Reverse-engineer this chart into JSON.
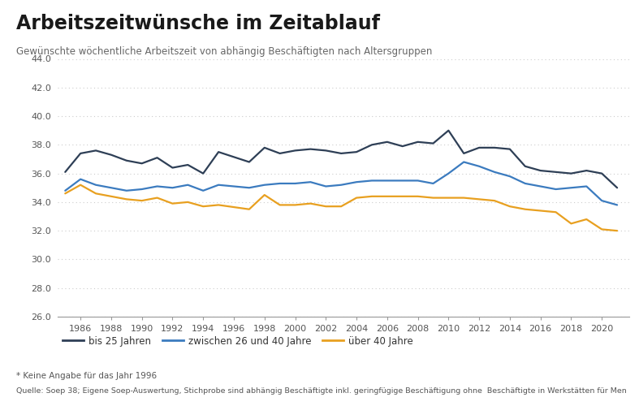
{
  "title": "Arbeitszeitwünsche im Zeitablauf",
  "subtitle": "Gewünschte wöchentliche Arbeitszeit von abhängig Beschäftigten nach Altersgruppen",
  "footnote": "* Keine Angabe für das Jahr 1996",
  "source": "Quelle: Soep 38; Eigene Soep-Auswertung, Stichprobe sind abhängig Beschäftigte inkl. geringfügige Beschäftigung ohne  Beschäftigte in Werkstätten für Men",
  "ylim": [
    26.0,
    44.0
  ],
  "yticks": [
    26.0,
    28.0,
    30.0,
    32.0,
    34.0,
    36.0,
    38.0,
    40.0,
    42.0,
    44.0
  ],
  "series": {
    "bis25": {
      "label": "bis 25 Jahren",
      "color": "#2e3f56",
      "linewidth": 1.6,
      "years": [
        1985,
        1986,
        1987,
        1988,
        1989,
        1990,
        1991,
        1992,
        1993,
        1994,
        1995,
        1997,
        1998,
        1999,
        2000,
        2001,
        2002,
        2003,
        2004,
        2005,
        2006,
        2007,
        2008,
        2009,
        2010,
        2011,
        2012,
        2013,
        2014,
        2015,
        2016,
        2017,
        2018,
        2019,
        2020,
        2021
      ],
      "values": [
        36.1,
        37.4,
        37.6,
        37.3,
        36.9,
        36.7,
        37.1,
        36.4,
        36.6,
        36.0,
        37.5,
        36.8,
        37.8,
        37.4,
        37.6,
        37.7,
        37.6,
        37.4,
        37.5,
        38.0,
        38.2,
        37.9,
        38.2,
        38.1,
        39.0,
        37.4,
        37.8,
        37.8,
        37.7,
        36.5,
        36.2,
        36.1,
        36.0,
        36.2,
        36.0,
        35.0
      ]
    },
    "zwischen26und40": {
      "label": "zwischen 26 und 40 Jahre",
      "color": "#3b7bbf",
      "linewidth": 1.6,
      "years": [
        1985,
        1986,
        1987,
        1988,
        1989,
        1990,
        1991,
        1992,
        1993,
        1994,
        1995,
        1997,
        1998,
        1999,
        2000,
        2001,
        2002,
        2003,
        2004,
        2005,
        2006,
        2007,
        2008,
        2009,
        2010,
        2011,
        2012,
        2013,
        2014,
        2015,
        2016,
        2017,
        2018,
        2019,
        2020,
        2021
      ],
      "values": [
        34.8,
        35.6,
        35.2,
        35.0,
        34.8,
        34.9,
        35.1,
        35.0,
        35.2,
        34.8,
        35.2,
        35.0,
        35.2,
        35.3,
        35.3,
        35.4,
        35.1,
        35.2,
        35.4,
        35.5,
        35.5,
        35.5,
        35.5,
        35.3,
        36.0,
        36.8,
        36.5,
        36.1,
        35.8,
        35.3,
        35.1,
        34.9,
        35.0,
        35.1,
        34.1,
        33.8
      ]
    },
    "ueber40": {
      "label": "über 40 Jahre",
      "color": "#e8a020",
      "linewidth": 1.6,
      "years": [
        1985,
        1986,
        1987,
        1988,
        1989,
        1990,
        1991,
        1992,
        1993,
        1994,
        1995,
        1997,
        1998,
        1999,
        2000,
        2001,
        2002,
        2003,
        2004,
        2005,
        2006,
        2007,
        2008,
        2009,
        2010,
        2011,
        2012,
        2013,
        2014,
        2015,
        2016,
        2017,
        2018,
        2019,
        2020,
        2021
      ],
      "values": [
        34.6,
        35.2,
        34.6,
        34.4,
        34.2,
        34.1,
        34.3,
        33.9,
        34.0,
        33.7,
        33.8,
        33.5,
        34.5,
        33.8,
        33.8,
        33.9,
        33.7,
        33.7,
        34.3,
        34.4,
        34.4,
        34.4,
        34.4,
        34.3,
        34.3,
        34.3,
        34.2,
        34.1,
        33.7,
        33.5,
        33.4,
        33.3,
        32.5,
        32.8,
        32.1,
        32.0
      ]
    }
  },
  "xtick_years": [
    1986,
    1988,
    1990,
    1992,
    1994,
    1996,
    1998,
    2000,
    2002,
    2004,
    2006,
    2008,
    2010,
    2012,
    2014,
    2016,
    2018,
    2020
  ],
  "background_color": "#ffffff",
  "grid_color": "#cccccc",
  "title_color": "#1a1a1a",
  "subtitle_color": "#666666",
  "footnote_color": "#555555"
}
